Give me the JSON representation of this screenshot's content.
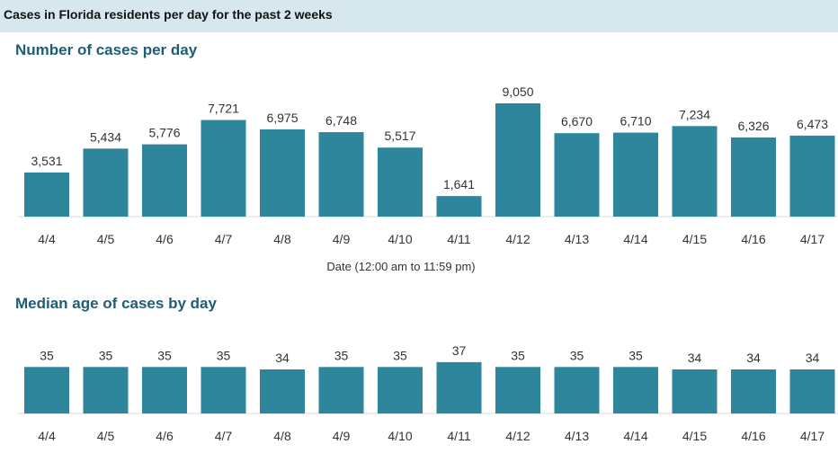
{
  "header": {
    "title": "Cases in Florida residents per day for the past 2 weeks"
  },
  "colors": {
    "bar": "#2e869c",
    "header_band": "#d6e8ee",
    "section_title": "#1f5d73"
  },
  "chart_data": [
    {
      "type": "bar",
      "title": "Number of cases per day",
      "categories": [
        "4/4",
        "4/5",
        "4/6",
        "4/7",
        "4/8",
        "4/9",
        "4/10",
        "4/11",
        "4/12",
        "4/13",
        "4/14",
        "4/15",
        "4/16",
        "4/17"
      ],
      "values": [
        3531,
        5434,
        5776,
        7721,
        6975,
        6748,
        5517,
        1641,
        9050,
        6670,
        6710,
        7234,
        6326,
        6473
      ],
      "value_labels": [
        "3,531",
        "5,434",
        "5,776",
        "7,721",
        "6,975",
        "6,748",
        "5,517",
        "1,641",
        "9,050",
        "6,670",
        "6,710",
        "7,234",
        "6,326",
        "6,473"
      ],
      "xlabel": "Date (12:00 am to 11:59 pm)",
      "ylabel": "",
      "ylim": [
        0,
        9050
      ],
      "grid": false
    },
    {
      "type": "bar",
      "title": "Median age of cases by day",
      "categories": [
        "4/4",
        "4/5",
        "4/6",
        "4/7",
        "4/8",
        "4/9",
        "4/10",
        "4/11",
        "4/12",
        "4/13",
        "4/14",
        "4/15",
        "4/16",
        "4/17"
      ],
      "values": [
        35,
        35,
        35,
        35,
        34,
        35,
        35,
        37,
        35,
        35,
        35,
        34,
        34,
        34
      ],
      "value_labels": [
        "35",
        "35",
        "35",
        "35",
        "34",
        "35",
        "35",
        "37",
        "35",
        "35",
        "35",
        "34",
        "34",
        "34"
      ],
      "xlabel": "",
      "ylabel": "",
      "ylim": [
        0,
        37
      ],
      "grid": false
    }
  ]
}
